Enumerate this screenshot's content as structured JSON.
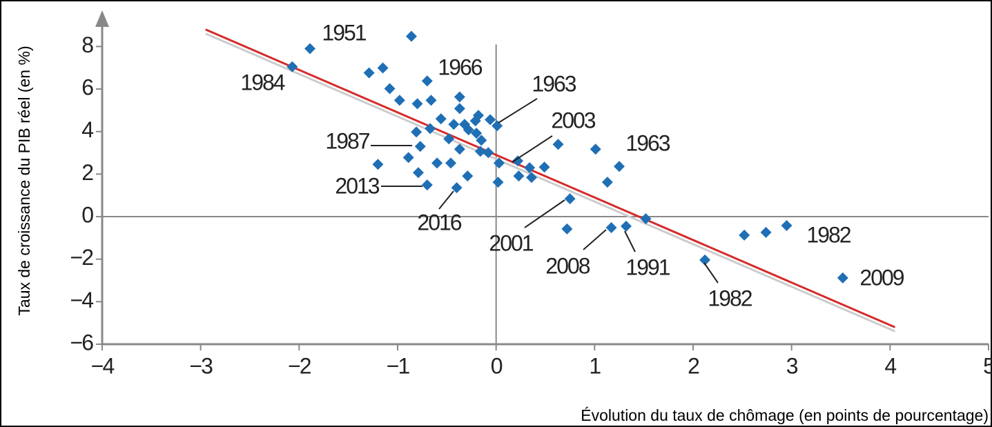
{
  "chart_data": {
    "type": "scatter",
    "x_label": "Évolution du taux de chômage (en points de pourcentage)",
    "y_label": "Taux de croissance du PIB réel (en %)",
    "xlim": [
      -4,
      5
    ],
    "ylim": [
      -6,
      9.7
    ],
    "xticks": [
      {
        "value": -4,
        "label": "−4"
      },
      {
        "value": -3,
        "label": "−3"
      },
      {
        "value": -2,
        "label": "−2"
      },
      {
        "value": -1,
        "label": "−1"
      },
      0,
      1,
      2,
      3,
      4,
      5
    ],
    "yticks": [
      {
        "value": -6,
        "label": "−6"
      },
      {
        "value": -4,
        "label": "−4"
      },
      {
        "value": -2,
        "label": "−2"
      },
      0,
      2,
      4,
      6,
      8
    ],
    "color": "#1f6fb5",
    "trend_color": "#d62a2a",
    "series": [
      {
        "x": [
          -2.07,
          -1.89,
          -0.86,
          -1.29,
          -1.15,
          -1.08,
          -0.98,
          -0.8,
          -0.7,
          -0.66,
          -0.37,
          -0.37,
          -0.56,
          -0.67,
          -0.81,
          -0.77,
          -0.89,
          -1.2,
          -0.79,
          -0.7,
          -0.6,
          -0.46,
          -0.48,
          -0.43,
          -0.37,
          -0.32,
          -0.28,
          -0.21,
          -0.18,
          -0.2,
          -0.15,
          -0.16,
          -0.08,
          -0.29,
          -0.4,
          -0.06,
          0.01,
          0.03,
          0.02,
          0.22,
          0.23,
          0.34,
          0.36,
          0.49,
          0.63,
          0.75,
          0.72,
          1.01,
          1.13,
          1.25,
          1.17,
          1.32,
          1.52,
          2.12,
          2.52,
          2.74,
          2.95,
          3.52
        ],
        "values": [
          7.05,
          7.9,
          8.48,
          6.76,
          6.99,
          6.02,
          5.47,
          5.31,
          6.38,
          5.47,
          5.63,
          5.08,
          4.6,
          4.14,
          3.98,
          3.3,
          2.78,
          2.46,
          2.07,
          1.49,
          2.52,
          2.52,
          3.66,
          4.34,
          3.17,
          4.34,
          4.08,
          4.5,
          4.76,
          3.92,
          3.59,
          3.07,
          3.01,
          1.91,
          1.36,
          4.56,
          4.27,
          2.52,
          1.62,
          2.62,
          1.91,
          2.3,
          1.84,
          2.33,
          3.4,
          0.84,
          -0.58,
          3.17,
          1.62,
          2.36,
          -0.52,
          -0.45,
          -0.1,
          -2.04,
          -0.87,
          -0.74,
          -0.42,
          -2.88
        ]
      }
    ],
    "trend_line": {
      "x": [
        -2.95,
        4.05
      ],
      "y": [
        8.8,
        -5.2
      ]
    },
    "annotations": [
      "1951",
      "1984",
      "1966",
      "1963",
      "2003",
      "1963",
      "1987",
      "2013",
      "2016",
      "2001",
      "2008",
      "1991",
      "1982",
      "1982",
      "2009"
    ]
  }
}
